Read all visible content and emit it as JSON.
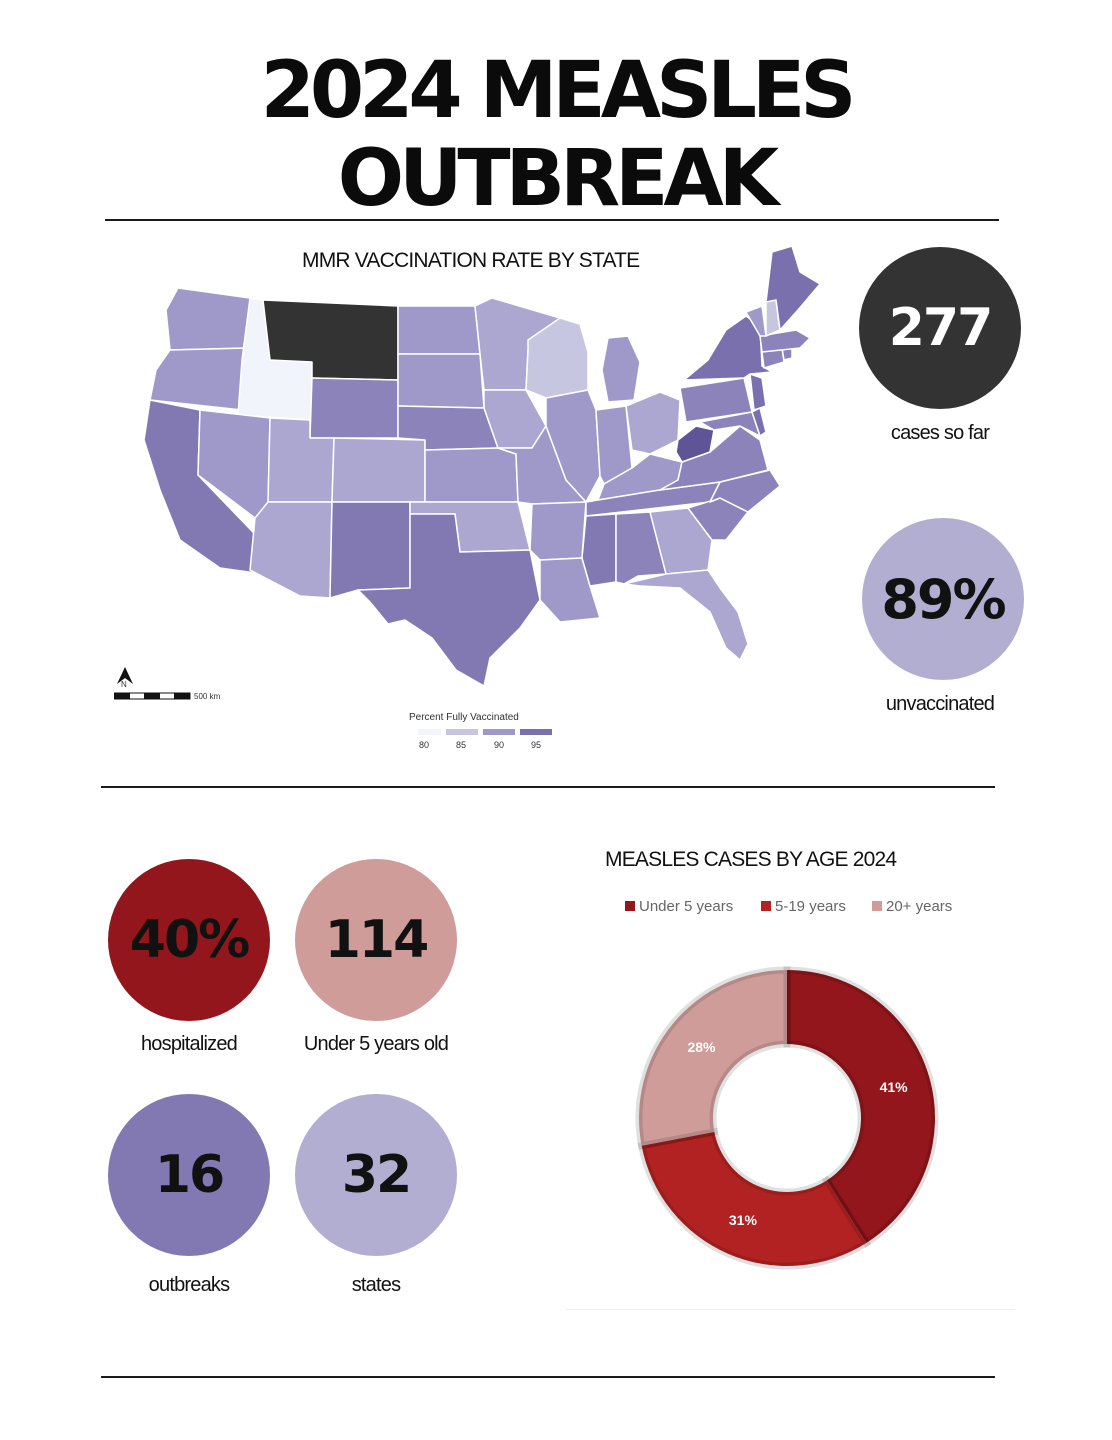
{
  "header": {
    "title_line1": "2024 MEASLES",
    "title_line2": "OUTBREAK"
  },
  "colors": {
    "dark": "#333333",
    "lavender": "#b1aed2",
    "purple": "#8279b2",
    "dark_red": "#92161b",
    "red": "#b32222",
    "pink": "#cf9c9a",
    "map_empty": "#f2f4fb"
  },
  "map": {
    "title": "MMR VACCINATION RATE BY STATE",
    "scale_label": "500 km",
    "north_label": "N",
    "legend": {
      "title": "Percent Fully Vaccinated",
      "ticks": [
        "80",
        "85",
        "90",
        "95"
      ]
    }
  },
  "stats_top": [
    {
      "value": "277",
      "label": "cases so far"
    },
    {
      "value": "89%",
      "label": "unvaccinated"
    }
  ],
  "stats_grid": [
    {
      "value": "40%",
      "label": "hospitalized"
    },
    {
      "value": "114",
      "label": "Under 5 years old"
    },
    {
      "value": "16",
      "label": "outbreaks"
    },
    {
      "value": "32",
      "label": "states"
    }
  ],
  "age_chart": {
    "title": "MEASLES CASES BY AGE 2024"
  },
  "chart_data": {
    "type": "pie",
    "title": "MEASLES CASES BY AGE 2024",
    "categories": [
      "Under 5 years",
      "5-19 years",
      "20+ years"
    ],
    "values": [
      41,
      31,
      28
    ],
    "labels": [
      "41%",
      "31%",
      "28%"
    ],
    "colors": [
      "#92161b",
      "#b32222",
      "#cf9c9a"
    ],
    "legend_position": "top"
  }
}
